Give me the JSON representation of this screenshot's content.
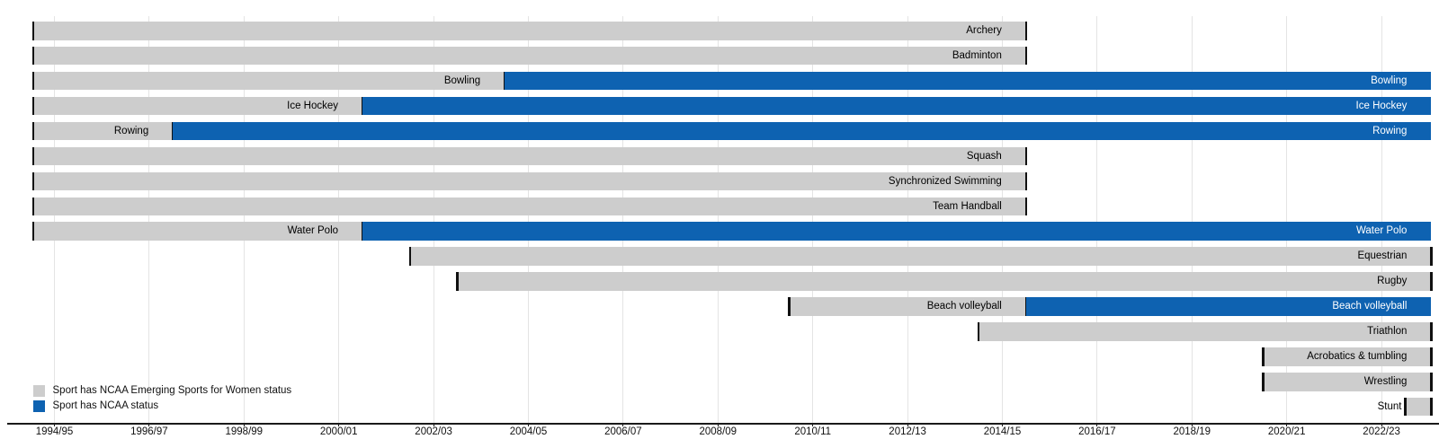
{
  "chart_data": {
    "type": "gantt",
    "orientation": "horizontal",
    "title": "",
    "xlabel": "",
    "ylabel": "",
    "grid": true,
    "colors": {
      "emerging": "#cdcdcd",
      "ncaa": "#0e62b1",
      "cap": "#111111",
      "gridline": "#e4e4e4",
      "axis": "#1a1a1a"
    },
    "x_axis": {
      "tick_labels": [
        "1994/95",
        "1996/97",
        "1998/99",
        "2000/01",
        "2002/03",
        "2004/05",
        "2006/07",
        "2008/09",
        "2010/11",
        "2012/13",
        "2014/15",
        "2016/17",
        "2018/19",
        "2020/21",
        "2022/23"
      ],
      "range_years": [
        1994.0,
        2023.6
      ]
    },
    "legend": [
      {
        "status": "emerging",
        "label": "Sport has NCAA Emerging Sports for Women status"
      },
      {
        "status": "ncaa",
        "label": "Sport has NCAA status"
      }
    ],
    "rows": [
      {
        "sport": "Archery",
        "segments": [
          {
            "status": "emerging",
            "start_year": 1994.05,
            "end_year": 2015.0,
            "label": "Archery"
          }
        ]
      },
      {
        "sport": "Badminton",
        "segments": [
          {
            "status": "emerging",
            "start_year": 1994.05,
            "end_year": 2015.0,
            "label": "Badminton"
          }
        ]
      },
      {
        "sport": "Bowling",
        "segments": [
          {
            "status": "emerging",
            "start_year": 1994.05,
            "end_year": 2004.0,
            "label": "Bowling"
          },
          {
            "status": "ncaa",
            "start_year": 2004.0,
            "end_year": 2023.55,
            "label": "Bowling"
          }
        ]
      },
      {
        "sport": "Ice Hockey",
        "segments": [
          {
            "status": "emerging",
            "start_year": 1994.05,
            "end_year": 2001.0,
            "label": "Ice Hockey"
          },
          {
            "status": "ncaa",
            "start_year": 2001.0,
            "end_year": 2023.55,
            "label": "Ice Hockey"
          }
        ]
      },
      {
        "sport": "Rowing",
        "segments": [
          {
            "status": "emerging",
            "start_year": 1994.05,
            "end_year": 1997.0,
            "label": "Rowing"
          },
          {
            "status": "ncaa",
            "start_year": 1997.0,
            "end_year": 2023.55,
            "label": "Rowing"
          }
        ]
      },
      {
        "sport": "Squash",
        "segments": [
          {
            "status": "emerging",
            "start_year": 1994.05,
            "end_year": 2015.0,
            "label": "Squash"
          }
        ]
      },
      {
        "sport": "Synchronized Swimming",
        "segments": [
          {
            "status": "emerging",
            "start_year": 1994.05,
            "end_year": 2015.0,
            "label": "Synchronized Swimming"
          }
        ]
      },
      {
        "sport": "Team Handball",
        "segments": [
          {
            "status": "emerging",
            "start_year": 1994.05,
            "end_year": 2015.0,
            "label": "Team Handball"
          }
        ]
      },
      {
        "sport": "Water Polo",
        "segments": [
          {
            "status": "emerging",
            "start_year": 1994.05,
            "end_year": 2001.0,
            "label": "Water Polo"
          },
          {
            "status": "ncaa",
            "start_year": 2001.0,
            "end_year": 2023.55,
            "label": "Water Polo"
          }
        ]
      },
      {
        "sport": "Equestrian",
        "segments": [
          {
            "status": "emerging",
            "start_year": 2002.0,
            "end_year": 2023.55,
            "label": "Equestrian"
          }
        ]
      },
      {
        "sport": "Rugby",
        "segments": [
          {
            "status": "emerging",
            "start_year": 2003.0,
            "end_year": 2023.55,
            "label": "Rugby"
          }
        ]
      },
      {
        "sport": "Beach volleyball",
        "segments": [
          {
            "status": "emerging",
            "start_year": 2010.0,
            "end_year": 2015.0,
            "label": "Beach volleyball"
          },
          {
            "status": "ncaa",
            "start_year": 2015.0,
            "end_year": 2023.55,
            "label": "Beach volleyball"
          }
        ]
      },
      {
        "sport": "Triathlon",
        "segments": [
          {
            "status": "emerging",
            "start_year": 2014.0,
            "end_year": 2023.55,
            "label": "Triathlon"
          }
        ]
      },
      {
        "sport": "Acrobatics & tumbling",
        "segments": [
          {
            "status": "emerging",
            "start_year": 2020.0,
            "end_year": 2023.55,
            "label": "Acrobatics & tumbling"
          }
        ]
      },
      {
        "sport": "Wrestling",
        "segments": [
          {
            "status": "emerging",
            "start_year": 2020.0,
            "end_year": 2023.55,
            "label": "Wrestling"
          }
        ]
      },
      {
        "sport": "Stunt",
        "segments": [
          {
            "status": "emerging",
            "start_year": 2023.0,
            "end_year": 2023.55,
            "label": "Stunt",
            "label_outside": true
          }
        ]
      }
    ]
  }
}
